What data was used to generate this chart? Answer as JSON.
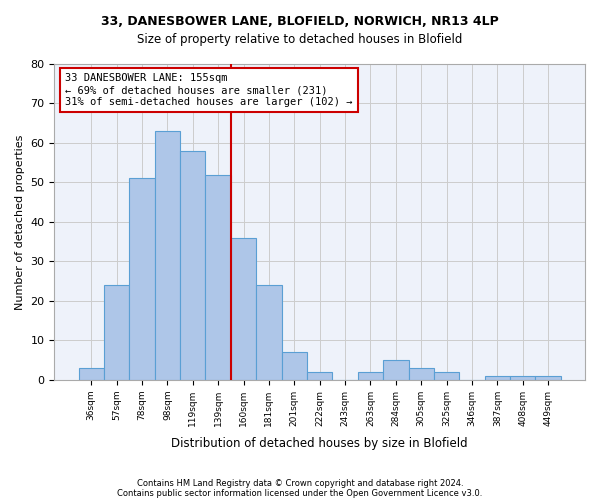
{
  "title_line1": "33, DANESBOWER LANE, BLOFIELD, NORWICH, NR13 4LP",
  "title_line2": "Size of property relative to detached houses in Blofield",
  "xlabel": "Distribution of detached houses by size in Blofield",
  "ylabel": "Number of detached properties",
  "footnote1": "Contains HM Land Registry data © Crown copyright and database right 2024.",
  "footnote2": "Contains public sector information licensed under the Open Government Licence v3.0.",
  "annotation_line1": "33 DANESBOWER LANE: 155sqm",
  "annotation_line2": "← 69% of detached houses are smaller (231)",
  "annotation_line3": "31% of semi-detached houses are larger (102) →",
  "bar_values": [
    3,
    24,
    51,
    63,
    58,
    52,
    36,
    24,
    7,
    2,
    0,
    2,
    5,
    3,
    2,
    0,
    1,
    1,
    1
  ],
  "bar_labels": [
    "36sqm",
    "57sqm",
    "78sqm",
    "98sqm",
    "119sqm",
    "139sqm",
    "160sqm",
    "181sqm",
    "201sqm",
    "222sqm",
    "243sqm",
    "263sqm",
    "284sqm",
    "305sqm",
    "325sqm",
    "346sqm",
    "387sqm",
    "408sqm",
    "449sqm"
  ],
  "bar_color": "#aec6e8",
  "bar_edge_color": "#5a9fd4",
  "vline_x": 5.5,
  "vline_color": "#cc0000",
  "annotation_box_color": "#cc0000",
  "ylim": [
    0,
    80
  ],
  "yticks": [
    0,
    10,
    20,
    30,
    40,
    50,
    60,
    70,
    80
  ],
  "grid_color": "#cccccc",
  "background_color": "#eef2fa"
}
